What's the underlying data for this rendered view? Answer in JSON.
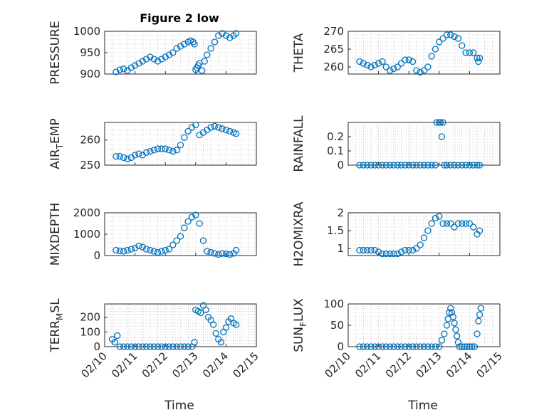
{
  "figure": {
    "title": "Figure 2 low",
    "xlabel": "Time",
    "marker_color": "#0072bd",
    "x_ticks": [
      "02/10",
      "02/11",
      "02/12",
      "02/13",
      "02/14",
      "02/15"
    ]
  },
  "chart_data": [
    {
      "type": "scatter",
      "ylabel": "PRESSURE",
      "title": "Figure 2 low",
      "xlabel": "",
      "ylim": [
        900,
        1000
      ],
      "yticks": [
        900,
        950,
        1000
      ],
      "ytick_labels": [
        "900",
        "950",
        "1000"
      ],
      "x_axis": "date",
      "xlim": [
        "02/10",
        "02/15"
      ],
      "grid": true,
      "series": [
        {
          "x": [
            "02/10 09:00",
            "02/10 12:00",
            "02/10 15:00",
            "02/10 18:00",
            "02/10 21:00",
            "02/11 00:00",
            "02/11 03:00",
            "02/11 06:00",
            "02/11 09:00",
            "02/11 12:00",
            "02/11 15:00",
            "02/11 18:00",
            "02/11 21:00",
            "02/12 00:00",
            "02/12 03:00",
            "02/12 06:00",
            "02/12 09:00",
            "02/12 12:00",
            "02/12 15:00",
            "02/12 18:00",
            "02/12 20:00",
            "02/12 22:00",
            "02/12 23:00",
            "02/13 00:00",
            "02/13 01:00",
            "02/13 02:00",
            "02/13 03:00",
            "02/13 05:00",
            "02/13 07:00",
            "02/13 09:00",
            "02/13 12:00",
            "02/13 15:00",
            "02/13 18:00",
            "02/13 21:00",
            "02/14 00:00",
            "02/14 03:00",
            "02/14 06:00",
            "02/14 08:00"
          ],
          "y": [
            905,
            910,
            912,
            908,
            915,
            920,
            925,
            930,
            935,
            940,
            935,
            930,
            935,
            940,
            945,
            950,
            960,
            965,
            970,
            975,
            978,
            975,
            970,
            910,
            915,
            920,
            925,
            908,
            930,
            945,
            960,
            975,
            990,
            995,
            990,
            985,
            990,
            995
          ]
        }
      ]
    },
    {
      "type": "scatter",
      "ylabel": "THETA",
      "ylim": [
        258,
        270
      ],
      "yticks": [
        260,
        265,
        270
      ],
      "ytick_labels": [
        "260",
        "265",
        "270"
      ],
      "x_axis": "date",
      "xlim": [
        "02/10",
        "02/15"
      ],
      "grid": true,
      "series": [
        {
          "x": [
            "02/10 09:00",
            "02/10 12:00",
            "02/10 15:00",
            "02/10 18:00",
            "02/10 21:00",
            "02/11 00:00",
            "02/11 03:00",
            "02/11 06:00",
            "02/11 09:00",
            "02/11 12:00",
            "02/11 15:00",
            "02/11 18:00",
            "02/11 21:00",
            "02/12 00:00",
            "02/12 03:00",
            "02/12 06:00",
            "02/12 09:00",
            "02/12 12:00",
            "02/12 15:00",
            "02/12 18:00",
            "02/12 21:00",
            "02/13 00:00",
            "02/13 03:00",
            "02/13 06:00",
            "02/13 09:00",
            "02/13 12:00",
            "02/13 15:00",
            "02/13 18:00",
            "02/13 21:00",
            "02/14 00:00",
            "02/14 03:00",
            "02/14 06:00",
            "02/14 07:00",
            "02/14 08:00"
          ],
          "y": [
            261.5,
            261,
            260.5,
            260,
            260.5,
            261,
            261.5,
            260,
            259,
            259.5,
            260,
            261,
            262,
            262,
            261.5,
            259,
            258.5,
            259,
            260,
            263,
            265,
            267,
            268,
            269,
            269,
            268.5,
            268,
            266,
            264,
            264,
            264,
            262.5,
            261.5,
            262.5
          ]
        }
      ]
    },
    {
      "type": "scatter",
      "ylabel": "AIR_TEMP",
      "ylim": [
        250,
        267
      ],
      "yticks": [
        250,
        260
      ],
      "ytick_labels": [
        "250",
        "260"
      ],
      "x_axis": "date",
      "xlim": [
        "02/10",
        "02/15"
      ],
      "grid": true,
      "series": [
        {
          "x": [
            "02/10 09:00",
            "02/10 12:00",
            "02/10 15:00",
            "02/10 18:00",
            "02/10 21:00",
            "02/11 00:00",
            "02/11 03:00",
            "02/11 06:00",
            "02/11 09:00",
            "02/11 12:00",
            "02/11 15:00",
            "02/11 18:00",
            "02/11 21:00",
            "02/12 00:00",
            "02/12 03:00",
            "02/12 06:00",
            "02/12 09:00",
            "02/12 12:00",
            "02/12 15:00",
            "02/12 18:00",
            "02/12 21:00",
            "02/13 00:00",
            "02/13 03:00",
            "02/13 06:00",
            "02/13 09:00",
            "02/13 12:00",
            "02/13 15:00",
            "02/13 18:00",
            "02/13 21:00",
            "02/14 00:00",
            "02/14 03:00",
            "02/14 06:00",
            "02/14 08:00"
          ],
          "y": [
            253.5,
            253.5,
            253,
            252.5,
            253,
            254,
            254.5,
            254,
            255,
            255.5,
            256,
            256.5,
            256.5,
            256.5,
            256,
            255.5,
            256,
            258,
            261,
            263.5,
            265,
            266,
            262,
            263,
            264,
            265,
            265.5,
            265,
            264.5,
            264,
            263.5,
            263,
            262.5
          ]
        }
      ]
    },
    {
      "type": "scatter",
      "ylabel": "RAINFALL",
      "ylim": [
        0,
        0.3
      ],
      "yticks": [
        0,
        0.1,
        0.2
      ],
      "ytick_labels": [
        "0",
        "0.1",
        "0.2"
      ],
      "x_axis": "date",
      "xlim": [
        "02/10",
        "02/15"
      ],
      "grid": true,
      "series": [
        {
          "x": [
            "02/10 09:00",
            "02/10 12:00",
            "02/10 15:00",
            "02/10 18:00",
            "02/10 21:00",
            "02/11 00:00",
            "02/11 03:00",
            "02/11 06:00",
            "02/11 09:00",
            "02/11 12:00",
            "02/11 15:00",
            "02/11 18:00",
            "02/11 21:00",
            "02/12 00:00",
            "02/12 03:00",
            "02/12 06:00",
            "02/12 09:00",
            "02/12 12:00",
            "02/12 15:00",
            "02/12 18:00",
            "02/12 21:00",
            "02/12 22:00",
            "02/13 00:00",
            "02/13 01:00",
            "02/13 02:00",
            "02/13 03:00",
            "02/13 04:00",
            "02/13 06:00",
            "02/13 09:00",
            "02/13 12:00",
            "02/13 15:00",
            "02/13 18:00",
            "02/13 21:00",
            "02/14 00:00",
            "02/14 03:00",
            "02/14 06:00",
            "02/14 08:00"
          ],
          "y": [
            0,
            0,
            0,
            0,
            0,
            0,
            0,
            0,
            0,
            0,
            0,
            0,
            0,
            0,
            0,
            0,
            0,
            0,
            0,
            0,
            0,
            0.3,
            0.3,
            0.3,
            0.2,
            0.3,
            0,
            0,
            0,
            0,
            0,
            0,
            0,
            0,
            0,
            0,
            0
          ]
        }
      ]
    },
    {
      "type": "scatter",
      "ylabel": "MIXDEPTH",
      "ylim": [
        0,
        2000
      ],
      "yticks": [
        0,
        1000,
        2000
      ],
      "ytick_labels": [
        "0",
        "1000",
        "2000"
      ],
      "x_axis": "date",
      "xlim": [
        "02/10",
        "02/15"
      ],
      "grid": true,
      "series": [
        {
          "x": [
            "02/10 09:00",
            "02/10 12:00",
            "02/10 15:00",
            "02/10 18:00",
            "02/10 21:00",
            "02/11 00:00",
            "02/11 03:00",
            "02/11 06:00",
            "02/11 09:00",
            "02/11 12:00",
            "02/11 15:00",
            "02/11 18:00",
            "02/11 21:00",
            "02/12 00:00",
            "02/12 03:00",
            "02/12 06:00",
            "02/12 09:00",
            "02/12 12:00",
            "02/12 15:00",
            "02/12 18:00",
            "02/12 21:00",
            "02/13 00:00",
            "02/13 03:00",
            "02/13 06:00",
            "02/13 09:00",
            "02/13 12:00",
            "02/13 15:00",
            "02/13 18:00",
            "02/13 21:00",
            "02/14 00:00",
            "02/14 03:00",
            "02/14 06:00",
            "02/14 08:00"
          ],
          "y": [
            250,
            220,
            200,
            250,
            300,
            350,
            450,
            400,
            300,
            250,
            200,
            150,
            200,
            250,
            300,
            500,
            700,
            900,
            1300,
            1600,
            1800,
            1900,
            1500,
            700,
            200,
            150,
            100,
            50,
            100,
            80,
            50,
            100,
            250
          ]
        }
      ]
    },
    {
      "type": "scatter",
      "ylabel": "H2OMIXRA",
      "ylim": [
        0.8,
        2
      ],
      "yticks": [
        1,
        1.5,
        2
      ],
      "ytick_labels": [
        "1",
        "1.5",
        "2"
      ],
      "x_axis": "date",
      "xlim": [
        "02/10",
        "02/15"
      ],
      "grid": true,
      "series": [
        {
          "x": [
            "02/10 09:00",
            "02/10 12:00",
            "02/10 15:00",
            "02/10 18:00",
            "02/10 21:00",
            "02/11 00:00",
            "02/11 03:00",
            "02/11 06:00",
            "02/11 09:00",
            "02/11 12:00",
            "02/11 15:00",
            "02/11 18:00",
            "02/11 21:00",
            "02/12 00:00",
            "02/12 03:00",
            "02/12 06:00",
            "02/12 09:00",
            "02/12 12:00",
            "02/12 15:00",
            "02/12 18:00",
            "02/12 21:00",
            "02/13 00:00",
            "02/13 03:00",
            "02/13 06:00",
            "02/13 09:00",
            "02/13 12:00",
            "02/13 15:00",
            "02/13 18:00",
            "02/13 21:00",
            "02/14 00:00",
            "02/14 03:00",
            "02/14 06:00",
            "02/14 08:00"
          ],
          "y": [
            0.95,
            0.95,
            0.95,
            0.95,
            0.95,
            0.9,
            0.85,
            0.85,
            0.85,
            0.85,
            0.85,
            0.9,
            0.95,
            0.95,
            0.95,
            1.0,
            1.1,
            1.3,
            1.5,
            1.7,
            1.85,
            1.9,
            1.7,
            1.7,
            1.7,
            1.6,
            1.7,
            1.7,
            1.7,
            1.7,
            1.6,
            1.4,
            1.5
          ]
        }
      ]
    },
    {
      "type": "scatter",
      "ylabel": "TERR_MSL",
      "ylim": [
        0,
        290
      ],
      "yticks": [
        0,
        100,
        200
      ],
      "ytick_labels": [
        "0",
        "100",
        "200"
      ],
      "x_axis": "date",
      "xlim": [
        "02/10",
        "02/15"
      ],
      "grid": true,
      "series": [
        {
          "x": [
            "02/10 06:00",
            "02/10 08:00",
            "02/10 10:00",
            "02/10 12:00",
            "02/10 15:00",
            "02/10 18:00",
            "02/10 21:00",
            "02/11 00:00",
            "02/11 03:00",
            "02/11 06:00",
            "02/11 09:00",
            "02/11 12:00",
            "02/11 15:00",
            "02/11 18:00",
            "02/11 21:00",
            "02/12 00:00",
            "02/12 03:00",
            "02/12 06:00",
            "02/12 09:00",
            "02/12 12:00",
            "02/12 15:00",
            "02/12 18:00",
            "02/12 21:00",
            "02/12 23:00",
            "02/13 00:00",
            "02/13 02:00",
            "02/13 04:00",
            "02/13 06:00",
            "02/13 08:00",
            "02/13 10:00",
            "02/13 12:00",
            "02/13 14:00",
            "02/13 16:00",
            "02/13 18:00",
            "02/13 20:00",
            "02/13 22:00",
            "02/14 00:00",
            "02/14 02:00",
            "02/14 04:00",
            "02/14 06:00",
            "02/14 08:00"
          ],
          "y": [
            50,
            30,
            75,
            0,
            0,
            0,
            0,
            0,
            0,
            0,
            0,
            0,
            0,
            0,
            0,
            0,
            0,
            0,
            0,
            0,
            0,
            0,
            0,
            30,
            250,
            240,
            230,
            280,
            250,
            200,
            180,
            150,
            90,
            50,
            30,
            100,
            130,
            170,
            190,
            160,
            150
          ]
        }
      ]
    },
    {
      "type": "scatter",
      "ylabel": "SUN_FLUX",
      "ylim": [
        0,
        100
      ],
      "yticks": [
        0,
        50,
        100
      ],
      "ytick_labels": [
        "0",
        "50",
        "100"
      ],
      "x_axis": "date",
      "xlim": [
        "02/10",
        "02/15"
      ],
      "grid": true,
      "series": [
        {
          "x": [
            "02/10 09:00",
            "02/10 12:00",
            "02/10 15:00",
            "02/10 18:00",
            "02/10 21:00",
            "02/11 00:00",
            "02/11 03:00",
            "02/11 06:00",
            "02/11 09:00",
            "02/11 12:00",
            "02/11 15:00",
            "02/11 18:00",
            "02/11 21:00",
            "02/12 00:00",
            "02/12 03:00",
            "02/12 06:00",
            "02/12 09:00",
            "02/12 12:00",
            "02/12 15:00",
            "02/12 18:00",
            "02/12 21:00",
            "02/13 00:00",
            "02/13 02:00",
            "02/13 04:00",
            "02/13 06:00",
            "02/13 07:00",
            "02/13 08:00",
            "02/13 09:00",
            "02/13 10:00",
            "02/13 11:00",
            "02/13 12:00",
            "02/13 13:00",
            "02/13 14:00",
            "02/13 15:00",
            "02/13 16:00",
            "02/13 18:00",
            "02/13 20:00",
            "02/13 22:00",
            "02/14 00:00",
            "02/14 02:00",
            "02/14 04:00",
            "02/14 06:00",
            "02/14 07:00",
            "02/14 08:00",
            "02/14 09:00"
          ],
          "y": [
            0,
            0,
            0,
            0,
            0,
            0,
            0,
            0,
            0,
            0,
            0,
            0,
            0,
            0,
            0,
            0,
            0,
            0,
            0,
            0,
            0,
            0,
            15,
            30,
            50,
            65,
            80,
            90,
            80,
            70,
            55,
            40,
            25,
            10,
            0,
            0,
            0,
            0,
            0,
            0,
            0,
            30,
            60,
            75,
            90
          ]
        }
      ]
    }
  ]
}
